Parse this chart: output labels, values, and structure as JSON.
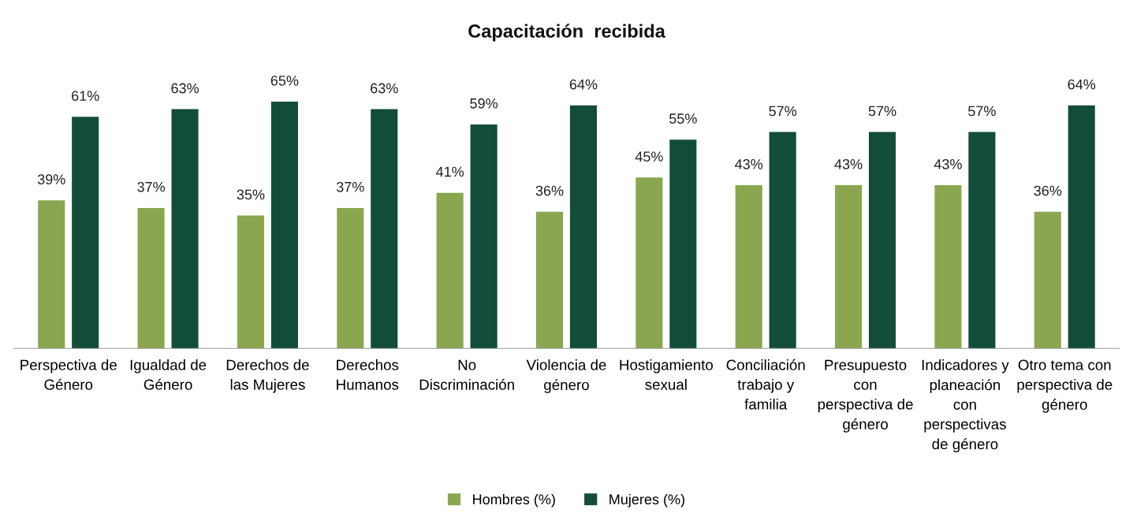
{
  "chart_data": {
    "type": "bar",
    "title": "Capacitación  recibida",
    "categories": [
      "Perspectiva de\nGénero",
      "Igualdad de\nGénero",
      "Derechos de\nlas Mujeres",
      "Derechos\nHumanos",
      "No\nDiscriminación",
      "Violencia de\ngénero",
      "Hostigamiento\nsexual",
      "Conciliación\ntrabajo y\nfamilia",
      "Presupuesto\ncon\nperspectiva de\ngénero",
      "Indicadores y\nplaneación\ncon\nperspectivas\nde género",
      "Otro tema con\nperspectiva de\ngénero"
    ],
    "series": [
      {
        "name": "Hombres (%)",
        "color": "#8aa64f",
        "values": [
          39,
          37,
          35,
          37,
          41,
          36,
          45,
          43,
          43,
          43,
          36
        ],
        "value_labels": [
          "39%",
          "37%",
          "35%",
          "37%",
          "41%",
          "36%",
          "45%",
          "43%",
          "43%",
          "43%",
          "36%"
        ]
      },
      {
        "name": "Mujeres (%)",
        "color": "#124d3a",
        "values": [
          61,
          63,
          65,
          63,
          59,
          64,
          55,
          57,
          57,
          57,
          64
        ],
        "value_labels": [
          "61%",
          "63%",
          "65%",
          "63%",
          "59%",
          "64%",
          "55%",
          "57%",
          "57%",
          "57%",
          "64%"
        ]
      }
    ],
    "tick_labels": "x",
    "legend": "bottom",
    "grid": false
  }
}
